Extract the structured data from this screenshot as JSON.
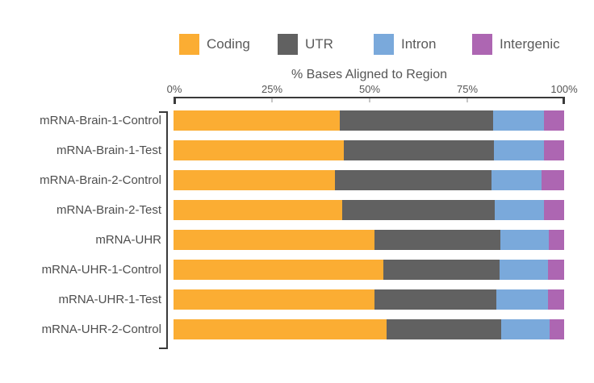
{
  "page": {
    "background": "#ffffff"
  },
  "legend": {
    "items": [
      {
        "label": "Coding",
        "color": "#FBAD33"
      },
      {
        "label": "UTR",
        "color": "#616161"
      },
      {
        "label": "Intron",
        "color": "#7AA9DB"
      },
      {
        "label": "Intergenic",
        "color": "#AD66B2"
      }
    ]
  },
  "chart_data": {
    "type": "bar",
    "orientation": "horizontal",
    "stacked": true,
    "title": "% Bases Aligned to Region",
    "xlabel": "% Bases Aligned to Region",
    "xlim": [
      0,
      100
    ],
    "x_ticks": [
      "0%",
      "25%",
      "50%",
      "75%",
      "100%"
    ],
    "grid": false,
    "legend_position": "top",
    "categories": [
      "mRNA-Brain-1-Control",
      "mRNA-Brain-1-Test",
      "mRNA-Brain-2-Control",
      "mRNA-Brain-2-Test",
      "mRNA-UHR",
      "mRNA-UHR-1-Control",
      "mRNA-UHR-1-Test",
      "mRNA-UHR-2-Control"
    ],
    "series": [
      {
        "name": "Coding",
        "color": "#FBAD33",
        "values": [
          42.5,
          43.5,
          41.3,
          43.1,
          51.5,
          53.7,
          51.5,
          54.5
        ]
      },
      {
        "name": "UTR",
        "color": "#616161",
        "values": [
          39.4,
          38.5,
          40.2,
          39.1,
          32.1,
          29.8,
          31.2,
          29.4
        ]
      },
      {
        "name": "Intron",
        "color": "#7AA9DB",
        "values": [
          13.0,
          12.9,
          12.8,
          12.7,
          12.4,
          12.3,
          13.1,
          12.3
        ]
      },
      {
        "name": "Intergenic",
        "color": "#AD66B2",
        "values": [
          5.1,
          5.1,
          5.7,
          5.1,
          4.0,
          4.2,
          4.2,
          3.8
        ]
      }
    ]
  }
}
